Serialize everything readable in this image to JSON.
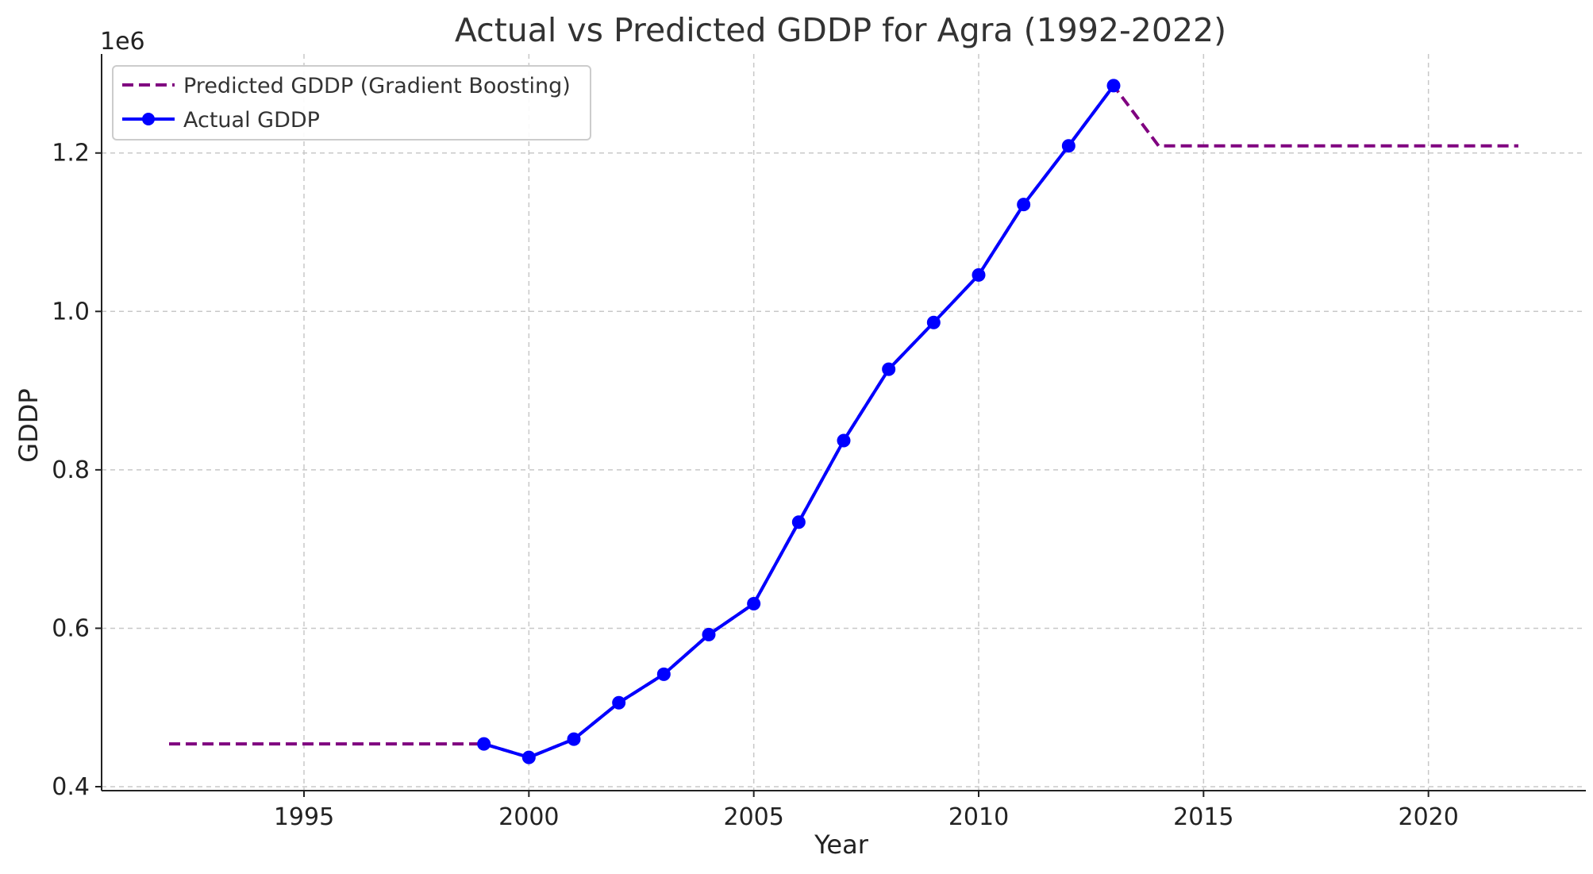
{
  "chart_data": {
    "type": "line",
    "title": "Actual vs Predicted GDDP for Agra (1992-2022)",
    "xlabel": "Year",
    "ylabel": "GDDP",
    "y_offset_label": "1e6",
    "xlim": [
      1990.5,
      2023.5
    ],
    "ylim": [
      0.395,
      1.325
    ],
    "xticks": [
      1995,
      2000,
      2005,
      2010,
      2015,
      2020
    ],
    "yticks": [
      0.4,
      0.6,
      0.8,
      1.0,
      1.2
    ],
    "ytick_labels": [
      "0.4",
      "0.6",
      "0.8",
      "1.0",
      "1.2"
    ],
    "grid": true,
    "legend_position": "top-left",
    "series": [
      {
        "name": "Predicted GDDP (Gradient Boosting)",
        "color": "#800080",
        "style": "dashed",
        "x": [
          1992,
          1993,
          1994,
          1995,
          1996,
          1997,
          1998,
          1999,
          2000,
          2001,
          2002,
          2003,
          2004,
          2005,
          2006,
          2007,
          2008,
          2009,
          2010,
          2011,
          2012,
          2013,
          2014,
          2015,
          2016,
          2017,
          2018,
          2019,
          2020,
          2021,
          2022
        ],
        "values": [
          0.454,
          0.454,
          0.454,
          0.454,
          0.454,
          0.454,
          0.454,
          0.454,
          0.437,
          0.46,
          0.506,
          0.542,
          0.592,
          0.631,
          0.734,
          0.837,
          0.927,
          0.986,
          1.046,
          1.135,
          1.209,
          1.285,
          1.209,
          1.209,
          1.209,
          1.209,
          1.209,
          1.209,
          1.209,
          1.209,
          1.209
        ]
      },
      {
        "name": "Actual GDDP",
        "color": "#0000ff",
        "style": "solid",
        "marker": "circle",
        "x": [
          1999,
          2000,
          2001,
          2002,
          2003,
          2004,
          2005,
          2006,
          2007,
          2008,
          2009,
          2010,
          2011,
          2012,
          2013
        ],
        "values": [
          0.454,
          0.437,
          0.46,
          0.506,
          0.542,
          0.592,
          0.631,
          0.734,
          0.837,
          0.927,
          0.986,
          1.046,
          1.135,
          1.209,
          1.285
        ]
      }
    ]
  }
}
